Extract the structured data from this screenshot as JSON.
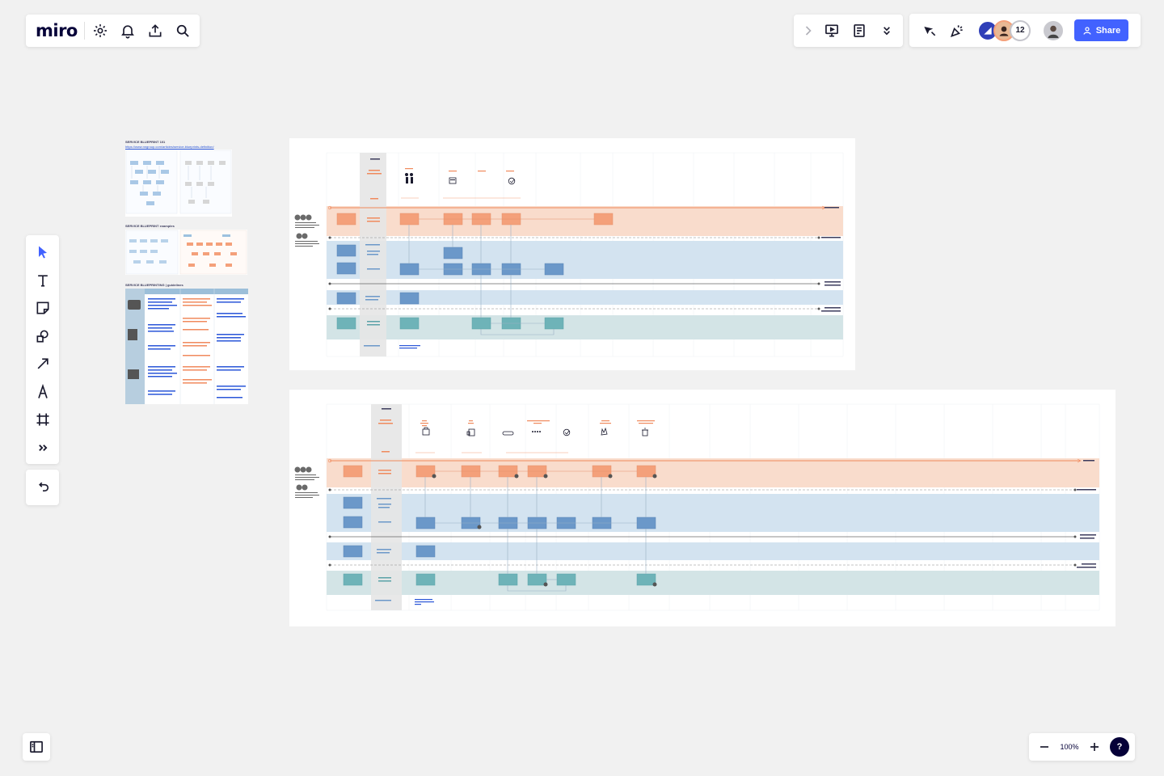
{
  "app": {
    "logo": "miro"
  },
  "collaboration": {
    "collaborator_count": "12",
    "share_label": "Share"
  },
  "zoom": {
    "level": "100%"
  },
  "help": {
    "label": "?"
  },
  "board": {
    "reference_frames": [
      {
        "title": "SERVICE BLUEPRINT 101",
        "link": "https://www.nngroup.com/articles/service-blueprints-definition/"
      },
      {
        "title": "SERVICE BLUEPRINT examples"
      },
      {
        "title": "SERVICE BLUEPRINTING | guidelines"
      }
    ],
    "blueprint_1": {
      "lanes": [
        {
          "color": "#f9dccc"
        },
        {
          "color": "#d3e3f0"
        },
        {
          "color": "#d3e3f0"
        },
        {
          "color": "#d3e4e6"
        }
      ],
      "colors": {
        "customer": "#f4a07a",
        "frontstage": "#6b98c9",
        "support": "#6eb3b8",
        "label_column": "#e6e6e6",
        "timeline": "#f08a5d"
      }
    },
    "blueprint_2": {
      "lanes": [
        {
          "color": "#f9dccc"
        },
        {
          "color": "#d3e3f0"
        },
        {
          "color": "#d3e3f0"
        },
        {
          "color": "#d3e4e6"
        }
      ]
    }
  }
}
